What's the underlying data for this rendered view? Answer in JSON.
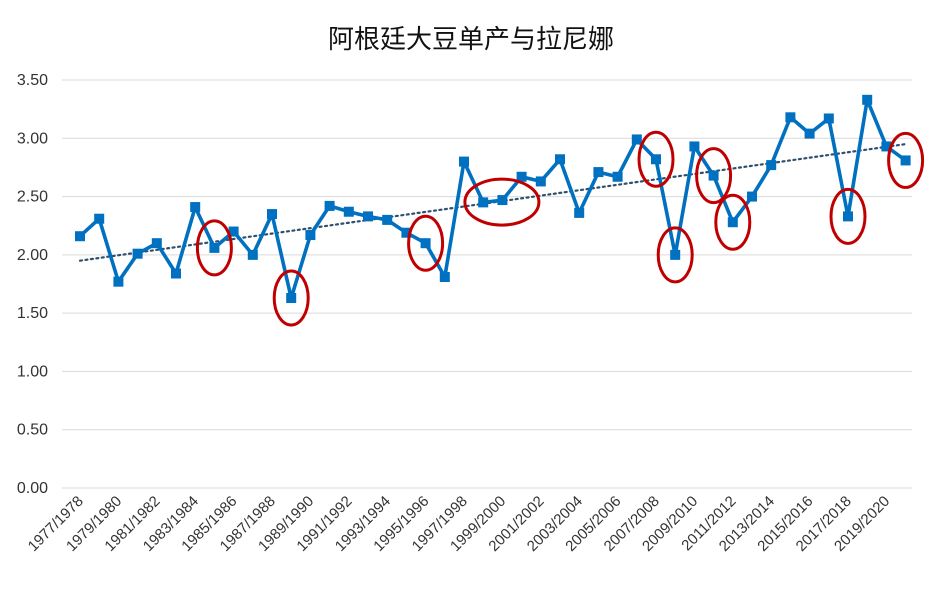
{
  "colors": {
    "series": "#0070C0",
    "trend": "#2F4F6F",
    "highlight": "#C00000",
    "grid": "#D9D9D9"
  },
  "chart_data": {
    "type": "line",
    "title": "阿根廷大豆单产与拉尼娜",
    "xlabel": "",
    "ylabel": "",
    "ylim": [
      0,
      3.5
    ],
    "yticks": [
      "0.00",
      "0.50",
      "1.00",
      "1.50",
      "2.00",
      "2.50",
      "3.00",
      "3.50"
    ],
    "grid": "horizontal",
    "legend": "none",
    "categories": [
      "1977/1978",
      "1978/1979",
      "1979/1980",
      "1980/1981",
      "1981/1982",
      "1982/1983",
      "1983/1984",
      "1984/1985",
      "1985/1986",
      "1986/1987",
      "1987/1988",
      "1988/1989",
      "1989/1990",
      "1990/1991",
      "1991/1992",
      "1992/1993",
      "1993/1994",
      "1994/1995",
      "1995/1996",
      "1996/1997",
      "1997/1998",
      "1998/1999",
      "1999/2000",
      "2000/2001",
      "2001/2002",
      "2002/2003",
      "2003/2004",
      "2004/2005",
      "2005/2006",
      "2006/2007",
      "2007/2008",
      "2008/2009",
      "2009/2010",
      "2010/2011",
      "2011/2012",
      "2012/2013",
      "2013/2014",
      "2014/2015",
      "2015/2016",
      "2016/2017",
      "2017/2018",
      "2018/2019",
      "2019/2020",
      "2020/2021"
    ],
    "xtick_labels": [
      "1977/1978",
      "1979/1980",
      "1981/1982",
      "1983/1984",
      "1985/1986",
      "1987/1988",
      "1989/1990",
      "1991/1992",
      "1993/1994",
      "1995/1996",
      "1997/1998",
      "1999/2000",
      "2001/2002",
      "2003/2004",
      "2005/2006",
      "2007/2008",
      "2009/2010",
      "2011/2012",
      "2013/2014",
      "2015/2016",
      "2017/2018",
      "2019/2020"
    ],
    "series": [
      {
        "values": [
          2.16,
          2.31,
          1.77,
          2.01,
          2.1,
          1.84,
          2.41,
          2.06,
          2.2,
          2.0,
          2.35,
          1.63,
          2.17,
          2.42,
          2.37,
          2.33,
          2.3,
          2.19,
          2.1,
          1.81,
          2.8,
          2.45,
          2.47,
          2.67,
          2.63,
          2.82,
          2.36,
          2.71,
          2.67,
          2.99,
          2.82,
          2.0,
          2.93,
          2.68,
          2.28,
          2.5,
          2.77,
          3.18,
          3.04,
          3.17,
          2.33,
          3.33,
          2.93,
          2.81
        ]
      }
    ],
    "trendline": {
      "style": "dotted",
      "start": 1.95,
      "end": 2.95
    },
    "highlighted_points": [
      "1984/1985",
      "1988/1989",
      "1995/1996",
      "1999/2000",
      "2007/2008",
      "2008/2009",
      "2010/2011",
      "2011/2012",
      "2017/2018",
      "2020/2021"
    ]
  }
}
